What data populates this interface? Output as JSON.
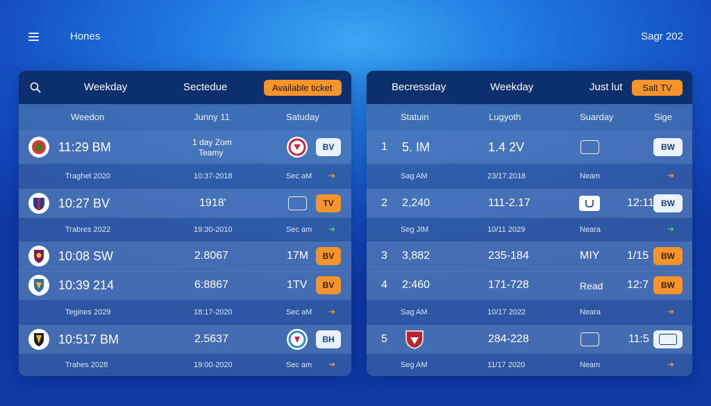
{
  "app": {
    "title": "Hones",
    "date": "Sagr 202"
  },
  "left": {
    "header": {
      "col1": "Weekday",
      "col2": "Sectedue",
      "pill": "Available ticket"
    },
    "columns": [
      "Weedon",
      "Junny 11",
      "Satuday"
    ],
    "rows": [
      {
        "time": "11:29 BM",
        "mid_line1": "1 day Zom",
        "mid_line2": "Teamy",
        "button": "BV"
      },
      {
        "sub": [
          "Traghet 2020",
          "10:37-2018",
          "Sec aM"
        ]
      },
      {
        "time": "10:27 BV",
        "mid": "1918'",
        "button": "TV"
      },
      {
        "sub": [
          "Trabres 2022",
          "19:30-2010",
          "Sec am"
        ]
      },
      {
        "time": "10:08 SW",
        "mid": "2.8067",
        "right": "17M",
        "button": "BV"
      },
      {
        "time": "10:39 214",
        "mid": "6:8867",
        "right": "1TV",
        "button": "BV"
      },
      {
        "sub": [
          "Tegines 2029",
          "18:17-2020",
          "Sec aM"
        ]
      },
      {
        "time": "10:517 BM",
        "mid": "2.5637",
        "button": "BH"
      },
      {
        "sub": [
          "Trahes 2028",
          "19:00-2020",
          "Sec am"
        ]
      }
    ]
  },
  "right": {
    "header": {
      "col1": "Becressday",
      "col2": "Weekday",
      "col3": "Just lut",
      "pill": "Salt TV"
    },
    "columns": [
      "Statuin",
      "Lugyoth",
      "Suarday",
      "Sige"
    ],
    "rows": [
      {
        "idx": "1",
        "val": "5. IM",
        "mid": "1.4 2V",
        "button": "BW"
      },
      {
        "sub": [
          "Sag AM",
          "23/17.2018",
          "Neam"
        ]
      },
      {
        "idx": "2",
        "val": "2,240",
        "mid": "111-2.17",
        "time": "12:11",
        "button": "BW"
      },
      {
        "sub": [
          "Seg JIM",
          "10/11 2029",
          "Neara"
        ]
      },
      {
        "idx": "3",
        "val": "3,882",
        "mid": "235-184",
        "txt": "MIY",
        "time": "1/15",
        "button": "BW"
      },
      {
        "idx": "4",
        "val": "2:460",
        "mid": "171-728",
        "txt": "Read",
        "time": "12:7",
        "button": "BW"
      },
      {
        "sub": [
          "Sag AM",
          "10/17 2022",
          "Neara"
        ]
      },
      {
        "idx": "5",
        "mid": "284-228",
        "time": "11:5"
      },
      {
        "sub": [
          "Seg AM",
          "11/17 2020",
          "Neam"
        ]
      }
    ]
  },
  "colors": {
    "accent": "#f4942a",
    "header": "#0d2f6e",
    "arrow_green": "#4fd36a"
  }
}
